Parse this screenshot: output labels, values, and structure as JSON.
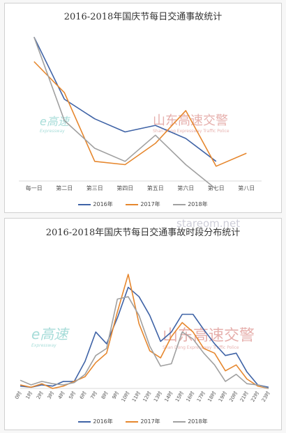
{
  "chart_data": [
    {
      "type": "line",
      "title": "2016-2018年国庆节每日交通事故统计",
      "categories": [
        "每一日",
        "第二日",
        "第三日",
        "第四日",
        "第五日",
        "第六日",
        "第七日",
        "第八日"
      ],
      "ylim": [
        0,
        100
      ],
      "grid": false,
      "legend": "bottom",
      "series": [
        {
          "name": "2016年",
          "color": "#3f63a6",
          "values": [
            88,
            50,
            38,
            30,
            34,
            26,
            12,
            null
          ]
        },
        {
          "name": "2017年",
          "color": "#e6872e",
          "values": [
            73,
            54,
            12,
            10,
            23,
            43,
            9,
            17
          ]
        },
        {
          "name": "2018年",
          "color": "#a0a0a0",
          "values": [
            88,
            37,
            20,
            12,
            28,
            10,
            -5,
            null
          ]
        }
      ]
    },
    {
      "type": "line",
      "title": "2016-2018年国庆节每日交通事故时段分布统计",
      "categories": [
        "0时",
        "1时",
        "2时",
        "3时",
        "4时",
        "5时",
        "6时",
        "7时",
        "8时",
        "9时",
        "10时",
        "11时",
        "12时",
        "13时",
        "14时",
        "15时",
        "16时",
        "17时",
        "18时",
        "19时",
        "20时",
        "21时",
        "22时",
        "23时"
      ],
      "ylim": [
        0,
        100
      ],
      "grid": false,
      "legend": "bottom",
      "series": [
        {
          "name": "2016年",
          "color": "#3f63a6",
          "values": [
            2,
            1,
            3,
            2,
            6,
            6,
            23,
            48,
            38,
            60,
            86,
            78,
            62,
            40,
            48,
            63,
            63,
            50,
            38,
            28,
            30,
            14,
            3,
            1
          ]
        },
        {
          "name": "2017年",
          "color": "#e6872e",
          "values": [
            3,
            1,
            4,
            0,
            2,
            6,
            10,
            22,
            30,
            65,
            97,
            55,
            32,
            26,
            44,
            56,
            48,
            34,
            30,
            15,
            20,
            8,
            2,
            0
          ]
        },
        {
          "name": "2018年",
          "color": "#a0a0a0",
          "values": [
            7,
            3,
            6,
            4,
            3,
            5,
            12,
            28,
            34,
            76,
            78,
            62,
            36,
            19,
            21,
            48,
            42,
            30,
            20,
            6,
            12,
            4,
            3,
            0
          ]
        }
      ]
    }
  ],
  "watermarks": {
    "e_brand": "e高速",
    "e_brand_sub": "Expressway",
    "sd_brand": "山东高速交警",
    "sd_brand_sub": "Shan Dong Expressway Traffic Police",
    "url": "stareom.net"
  }
}
